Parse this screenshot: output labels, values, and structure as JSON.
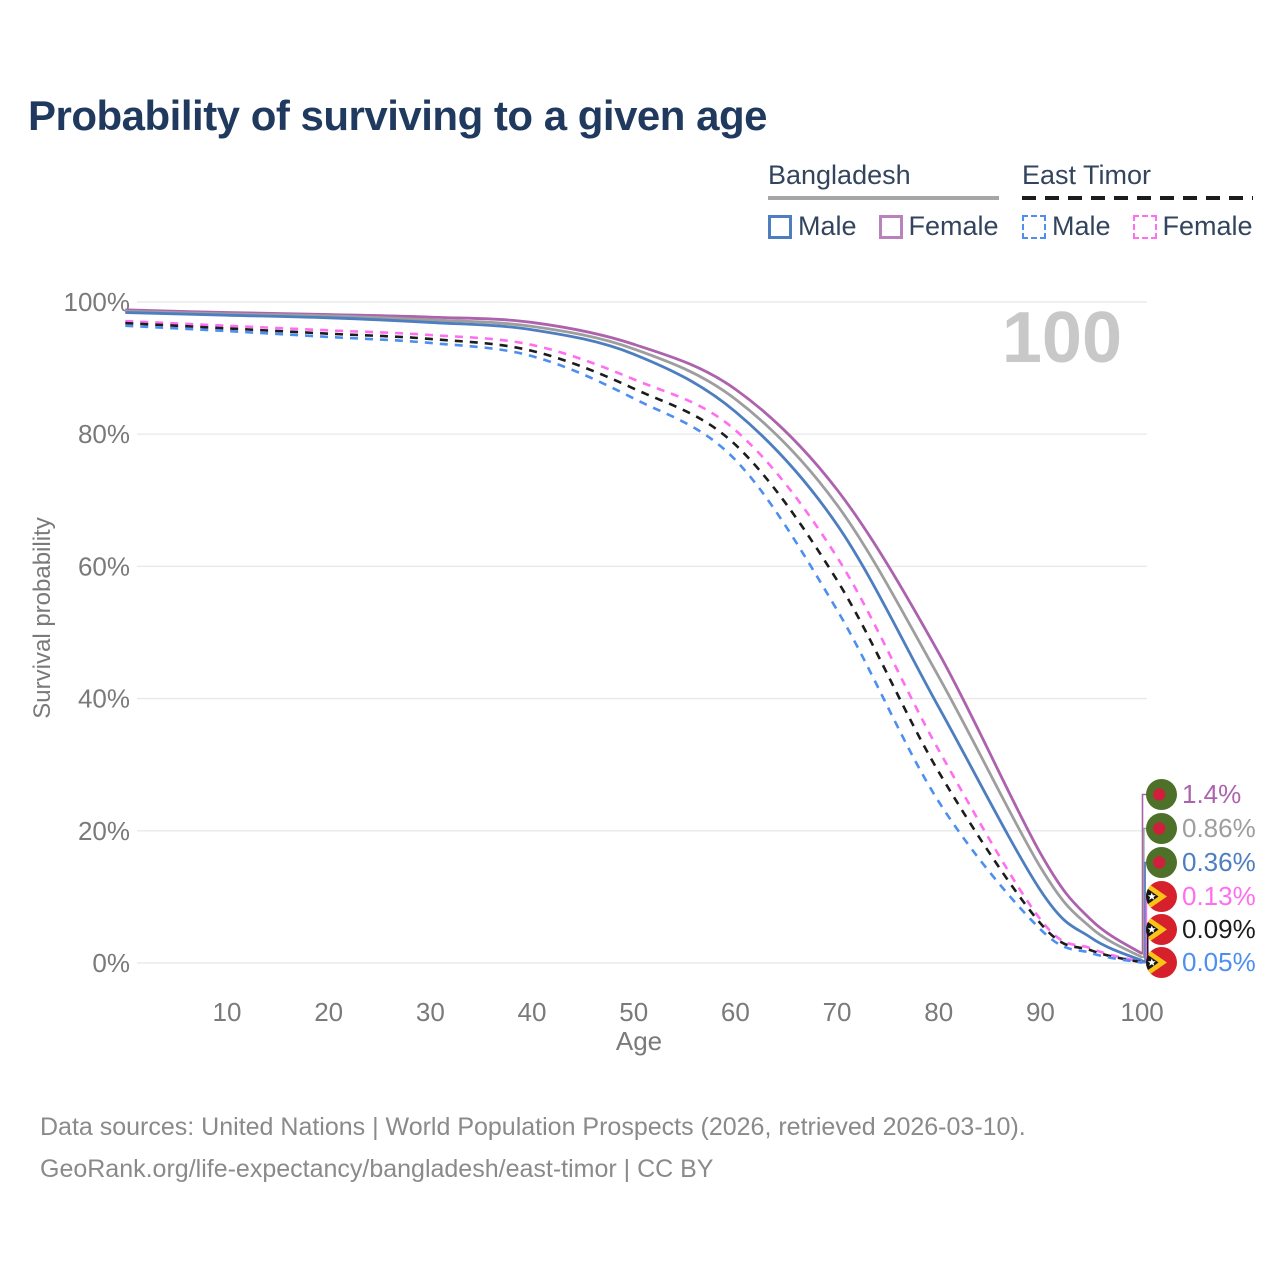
{
  "header": {
    "title": "Probability of surviving to a given age"
  },
  "legend": {
    "groups": [
      {
        "label": "Bangladesh",
        "line_style": "solid",
        "line_color": "#a6a6a6",
        "items": [
          {
            "label": "Male",
            "color": "#4d7ec0",
            "dashed": false
          },
          {
            "label": "Female",
            "color": "#b883bb",
            "dashed": false
          }
        ]
      },
      {
        "label": "East Timor",
        "line_style": "dashed",
        "line_color": "#1c1c1c",
        "items": [
          {
            "label": "Male",
            "color": "#4d8ff0",
            "dashed": true
          },
          {
            "label": "Female",
            "color": "#ff6ef0",
            "dashed": true
          }
        ]
      }
    ]
  },
  "chart_data": {
    "type": "line",
    "title": "Probability of surviving to a given age",
    "xlabel": "Age",
    "ylabel": "Survival probability",
    "xlim": [
      0,
      100
    ],
    "ylim": [
      0,
      100
    ],
    "x_ticks": [
      10,
      20,
      30,
      40,
      50,
      60,
      70,
      80,
      90,
      100
    ],
    "y_ticks": [
      0,
      20,
      40,
      60,
      80,
      100
    ],
    "y_tick_suffix": "%",
    "grid": true,
    "legend_position": "top-right",
    "age_indicator": "100",
    "sample_ages": [
      0,
      10,
      20,
      30,
      40,
      50,
      60,
      70,
      80,
      90,
      95,
      100
    ],
    "series": [
      {
        "name": "Bangladesh Female",
        "country": "Bangladesh",
        "sex": "Female",
        "color": "#ad62ad",
        "dash": "solid",
        "end_label": "1.4%",
        "values": [
          98.8,
          98.4,
          98.1,
          97.7,
          96.9,
          93.6,
          86.8,
          71.6,
          46.9,
          16.6,
          6.5,
          1.4
        ]
      },
      {
        "name": "Bangladesh Both sexes",
        "country": "Bangladesh",
        "sex": "Both",
        "color": "#9e9e9e",
        "dash": "solid",
        "end_label": "0.86%",
        "values": [
          98.6,
          98.2,
          97.9,
          97.3,
          96.3,
          92.9,
          85.3,
          69.3,
          43.3,
          14.5,
          5.3,
          0.86
        ]
      },
      {
        "name": "Bangladesh Male",
        "country": "Bangladesh",
        "sex": "Male",
        "color": "#4d7ec0",
        "dash": "solid",
        "end_label": "0.36%",
        "values": [
          98.4,
          98.0,
          97.6,
          96.9,
          95.8,
          92.1,
          83.4,
          66.3,
          38.7,
          11.0,
          3.8,
          0.36
        ]
      },
      {
        "name": "East Timor Female",
        "country": "East Timor",
        "sex": "Female",
        "color": "#ff6ef0",
        "dash": "dashed",
        "end_label": "0.13%",
        "values": [
          97.1,
          96.4,
          95.7,
          95.0,
          93.5,
          88.3,
          80.6,
          61.4,
          32.2,
          6.6,
          2.2,
          0.13
        ]
      },
      {
        "name": "East Timor Both sexes",
        "country": "East Timor",
        "sex": "Both",
        "color": "#1c1c1c",
        "dash": "dashed",
        "end_label": "0.09%",
        "values": [
          96.8,
          96.0,
          95.2,
          94.4,
          92.6,
          86.9,
          78.4,
          57.9,
          28.9,
          6.0,
          1.9,
          0.09
        ]
      },
      {
        "name": "East Timor Male",
        "country": "East Timor",
        "sex": "Male",
        "color": "#4d8ff0",
        "dash": "dashed",
        "end_label": "0.05%",
        "values": [
          96.4,
          95.6,
          94.7,
          93.8,
          91.8,
          85.4,
          76.1,
          53.4,
          24.4,
          5.1,
          1.5,
          0.05
        ]
      }
    ]
  },
  "footer": {
    "line1": "Data sources: United Nations | World Population Prospects (2026, retrieved 2026-03-10).",
    "line2": "GeoRank.org/life-expectancy/bangladesh/east-timor | CC BY"
  },
  "colors": {
    "title_text": "#1f3a5e",
    "legend_text": "#33455e",
    "tick_text": "#7a7a7a",
    "gridline": "#e8e8e8",
    "watermark": "#c8c8c8",
    "footer_text": "#8a8a8a"
  }
}
